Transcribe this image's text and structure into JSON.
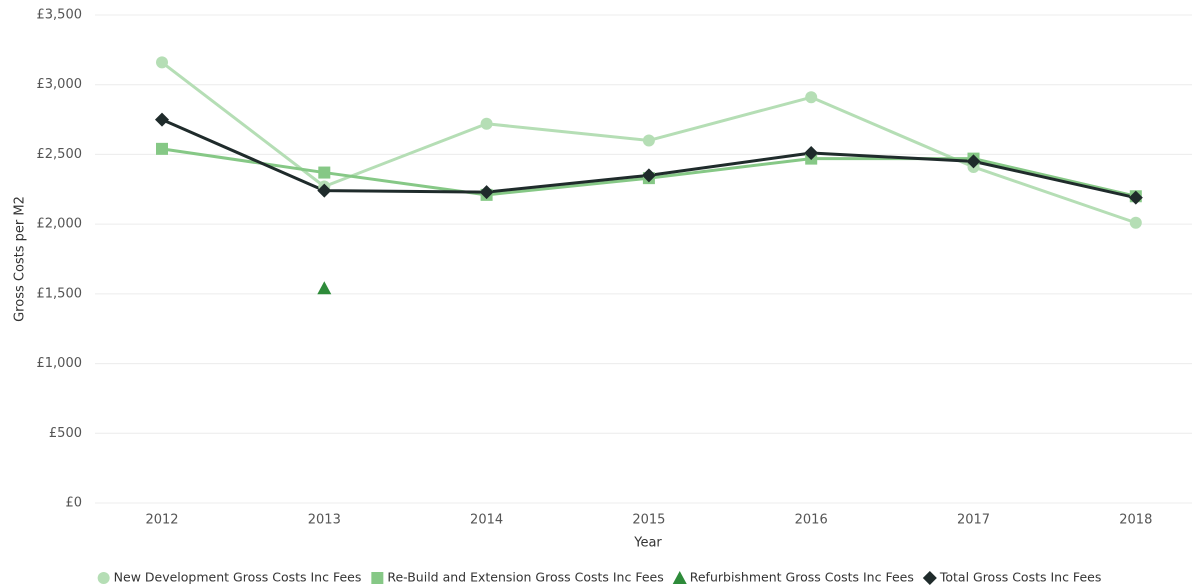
{
  "chart_data": {
    "type": "line",
    "x_label": "Year",
    "y_label": "Gross Costs per M2",
    "categories": [
      "2012",
      "2013",
      "2014",
      "2015",
      "2016",
      "2017",
      "2018"
    ],
    "series": [
      {
        "name": "New Development Gross Costs Inc Fees",
        "color": "#b5deb5",
        "marker": "circle",
        "values": [
          3160,
          2270,
          2720,
          2600,
          2910,
          2410,
          2010
        ]
      },
      {
        "name": "Re-Build and Extension Gross Costs Inc Fees",
        "color": "#86c886",
        "marker": "square",
        "values": [
          2540,
          2370,
          2210,
          2330,
          2470,
          2470,
          2200
        ]
      },
      {
        "name": "Refurbishment Gross Costs Inc Fees",
        "color": "#2e8b3a",
        "marker": "triangle",
        "values": [
          null,
          1540,
          null,
          null,
          null,
          null,
          null
        ]
      },
      {
        "name": "Total Gross Costs Inc Fees",
        "color": "#1f2b2b",
        "marker": "diamond",
        "values": [
          2750,
          2240,
          2230,
          2350,
          2510,
          2450,
          2190
        ]
      }
    ],
    "ylim": [
      0,
      3500
    ],
    "yticks": [
      {
        "value": 0,
        "label": "£0"
      },
      {
        "value": 500,
        "label": "£500"
      },
      {
        "value": 1000,
        "label": "£1,000"
      },
      {
        "value": 1500,
        "label": "£1,500"
      },
      {
        "value": 2000,
        "label": "£2,000"
      },
      {
        "value": 2500,
        "label": "£2,500"
      },
      {
        "value": 3000,
        "label": "£3,000"
      },
      {
        "value": 3500,
        "label": "£3,500"
      }
    ],
    "grid": true,
    "legend": "bottom"
  }
}
